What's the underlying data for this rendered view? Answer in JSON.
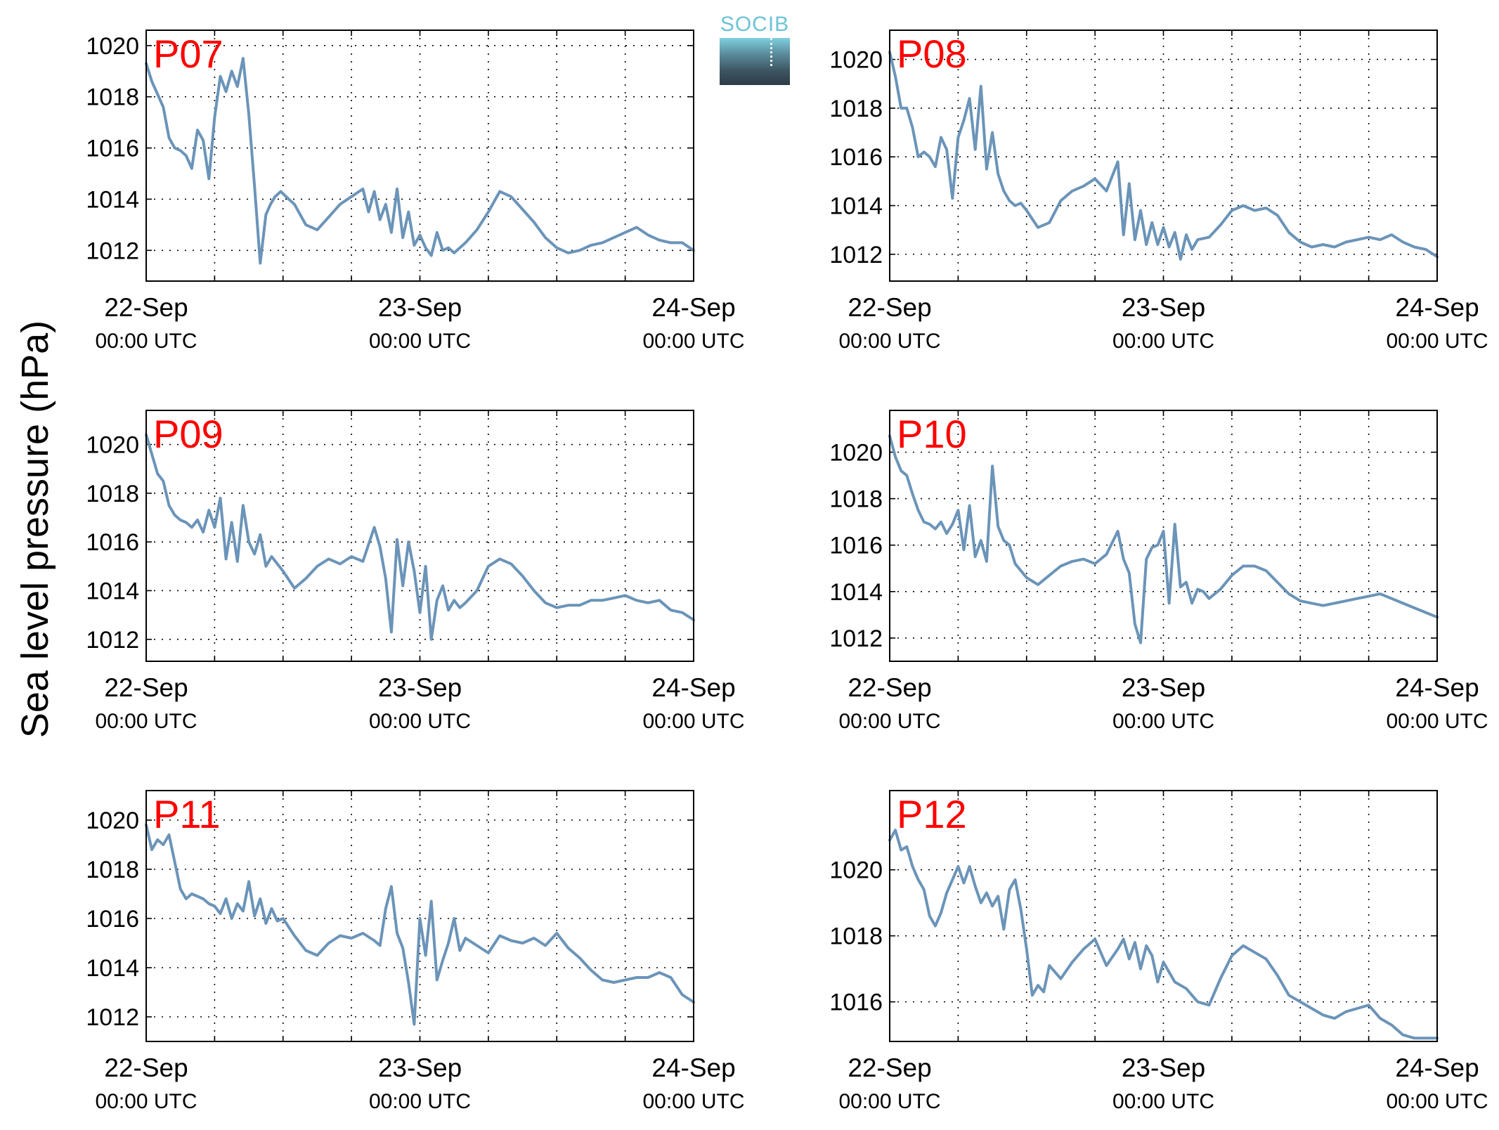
{
  "figure": {
    "ylabel": "Sea level pressure (hPa)",
    "logo_text": "SOCIB"
  },
  "colors": {
    "line": "#6b94b8",
    "panel_title": "#ff0000",
    "grid": "#000000"
  },
  "chart_data": [
    {
      "type": "line",
      "title": "P07",
      "x_ticks": [
        {
          "label": "22-Sep",
          "sublabel": "00:00 UTC",
          "hour": 0
        },
        {
          "label": "23-Sep",
          "sublabel": "00:00 UTC",
          "hour": 24
        },
        {
          "label": "24-Sep",
          "sublabel": "00:00 UTC",
          "hour": 48
        }
      ],
      "x_gridlines_every_hours": 6,
      "xlim": [
        0,
        48
      ],
      "ylim": [
        1010.8,
        1020.6
      ],
      "y_ticks": [
        1012,
        1014,
        1016,
        1018,
        1020
      ],
      "grid": true,
      "series": [
        {
          "hours": [
            0,
            0.5,
            1,
            1.5,
            2,
            2.5,
            3,
            3.5,
            4,
            4.5,
            5,
            5.5,
            6,
            6.5,
            7,
            7.5,
            8,
            8.5,
            9,
            9.5,
            10,
            10.5,
            10.9,
            11.3,
            11.8,
            12.5,
            13,
            14,
            15,
            16,
            17,
            18,
            19,
            19.5,
            20,
            20.5,
            21,
            21.5,
            22,
            22.5,
            23,
            23.5,
            24,
            24.5,
            25,
            25.5,
            26,
            26.5,
            27,
            28,
            29,
            30,
            31,
            32,
            33,
            34,
            35,
            36,
            37,
            38,
            39,
            40,
            41,
            42,
            43,
            44,
            45,
            46,
            47,
            48
          ],
          "values": [
            1019.3,
            1018.6,
            1018.1,
            1017.6,
            1016.4,
            1016.0,
            1015.9,
            1015.7,
            1015.2,
            1016.7,
            1016.3,
            1014.8,
            1017.2,
            1018.8,
            1018.2,
            1019.0,
            1018.4,
            1019.5,
            1017.3,
            1014.5,
            1011.5,
            1013.4,
            1013.8,
            1014.1,
            1014.3,
            1014.0,
            1013.8,
            1013.0,
            1012.8,
            1013.3,
            1013.8,
            1014.1,
            1014.4,
            1013.5,
            1014.3,
            1013.2,
            1013.8,
            1012.7,
            1014.4,
            1012.5,
            1013.5,
            1012.2,
            1012.6,
            1012.1,
            1011.8,
            1012.7,
            1012.0,
            1012.1,
            1011.9,
            1012.3,
            1012.8,
            1013.5,
            1014.3,
            1014.1,
            1013.6,
            1013.1,
            1012.5,
            1012.1,
            1011.9,
            1012.0,
            1012.2,
            1012.3,
            1012.5,
            1012.7,
            1012.9,
            1012.6,
            1012.4,
            1012.3,
            1012.3,
            1012.0
          ]
        }
      ]
    },
    {
      "type": "line",
      "title": "P08",
      "x_ticks": [
        {
          "label": "22-Sep",
          "sublabel": "00:00 UTC",
          "hour": 0
        },
        {
          "label": "23-Sep",
          "sublabel": "00:00 UTC",
          "hour": 24
        },
        {
          "label": "24-Sep",
          "sublabel": "00:00 UTC",
          "hour": 48
        }
      ],
      "x_gridlines_every_hours": 6,
      "xlim": [
        0,
        48
      ],
      "ylim": [
        1010.9,
        1021.2
      ],
      "y_ticks": [
        1012,
        1014,
        1016,
        1018,
        1020
      ],
      "grid": true,
      "series": [
        {
          "hours": [
            0,
            0.5,
            1,
            1.5,
            2,
            2.5,
            3,
            3.5,
            4,
            4.5,
            5,
            5.5,
            6,
            6.5,
            7,
            7.5,
            8,
            8.5,
            9,
            9.5,
            10,
            10.5,
            11,
            11.5,
            12,
            13,
            14,
            15,
            16,
            17,
            18,
            19,
            20,
            20.5,
            21,
            21.5,
            22,
            22.5,
            23,
            23.5,
            24,
            24.5,
            25,
            25.5,
            26,
            26.5,
            27,
            28,
            29,
            30,
            31,
            32,
            33,
            34,
            35,
            36,
            37,
            38,
            39,
            40,
            41,
            42,
            43,
            44,
            45,
            46,
            47,
            48
          ],
          "values": [
            1020.3,
            1019.3,
            1018.0,
            1018.0,
            1017.2,
            1016.0,
            1016.2,
            1016.0,
            1015.6,
            1016.8,
            1016.3,
            1014.3,
            1016.8,
            1017.5,
            1018.4,
            1016.3,
            1018.9,
            1015.5,
            1017.0,
            1015.3,
            1014.6,
            1014.2,
            1014.0,
            1014.1,
            1013.8,
            1013.1,
            1013.3,
            1014.2,
            1014.6,
            1014.8,
            1015.1,
            1014.6,
            1015.8,
            1012.8,
            1014.9,
            1012.6,
            1013.8,
            1012.4,
            1013.3,
            1012.4,
            1013.1,
            1012.3,
            1012.9,
            1011.8,
            1012.8,
            1012.2,
            1012.6,
            1012.7,
            1013.2,
            1013.8,
            1014.0,
            1013.8,
            1013.9,
            1013.6,
            1012.9,
            1012.5,
            1012.3,
            1012.4,
            1012.3,
            1012.5,
            1012.6,
            1012.7,
            1012.6,
            1012.8,
            1012.5,
            1012.3,
            1012.2,
            1011.9
          ]
        }
      ]
    },
    {
      "type": "line",
      "title": "P09",
      "x_ticks": [
        {
          "label": "22-Sep",
          "sublabel": "00:00 UTC",
          "hour": 0
        },
        {
          "label": "23-Sep",
          "sublabel": "00:00 UTC",
          "hour": 24
        },
        {
          "label": "24-Sep",
          "sublabel": "00:00 UTC",
          "hour": 48
        }
      ],
      "x_gridlines_every_hours": 6,
      "xlim": [
        0,
        48
      ],
      "ylim": [
        1011.1,
        1021.4
      ],
      "y_ticks": [
        1012,
        1014,
        1016,
        1018,
        1020
      ],
      "grid": true,
      "series": [
        {
          "hours": [
            0,
            0.5,
            1,
            1.5,
            2,
            2.5,
            3,
            3.5,
            4,
            4.5,
            5,
            5.5,
            6,
            6.5,
            7,
            7.5,
            8,
            8.5,
            9,
            9.5,
            10,
            10.5,
            11,
            12,
            13,
            14,
            15,
            16,
            17,
            18,
            19,
            20,
            20.5,
            21,
            21.5,
            22,
            22.5,
            23,
            23.5,
            24,
            24.5,
            25,
            25.5,
            26,
            26.5,
            27,
            27.5,
            28,
            29,
            30,
            31,
            32,
            33,
            34,
            35,
            36,
            37,
            38,
            39,
            40,
            41,
            42,
            43,
            44,
            45,
            46,
            47,
            48
          ],
          "values": [
            1020.4,
            1019.6,
            1018.8,
            1018.5,
            1017.5,
            1017.1,
            1016.9,
            1016.8,
            1016.6,
            1016.9,
            1016.4,
            1017.3,
            1016.6,
            1017.8,
            1015.3,
            1016.8,
            1015.2,
            1017.5,
            1016.0,
            1015.5,
            1016.3,
            1015.0,
            1015.4,
            1014.8,
            1014.1,
            1014.5,
            1015.0,
            1015.3,
            1015.1,
            1015.4,
            1015.2,
            1016.6,
            1015.8,
            1014.5,
            1012.3,
            1016.1,
            1014.2,
            1016.0,
            1014.8,
            1013.1,
            1015.0,
            1012.0,
            1013.6,
            1014.2,
            1013.2,
            1013.6,
            1013.3,
            1013.5,
            1014.0,
            1015.0,
            1015.3,
            1015.1,
            1014.6,
            1014.0,
            1013.5,
            1013.3,
            1013.4,
            1013.4,
            1013.6,
            1013.6,
            1013.7,
            1013.8,
            1013.6,
            1013.5,
            1013.6,
            1013.2,
            1013.1,
            1012.8
          ]
        }
      ]
    },
    {
      "type": "line",
      "title": "P10",
      "x_ticks": [
        {
          "label": "22-Sep",
          "sublabel": "00:00 UTC",
          "hour": 0
        },
        {
          "label": "23-Sep",
          "sublabel": "00:00 UTC",
          "hour": 24
        },
        {
          "label": "24-Sep",
          "sublabel": "00:00 UTC",
          "hour": 48
        }
      ],
      "x_gridlines_every_hours": 6,
      "xlim": [
        0,
        48
      ],
      "ylim": [
        1011.0,
        1021.8
      ],
      "y_ticks": [
        1012,
        1014,
        1016,
        1018,
        1020
      ],
      "grid": true,
      "series": [
        {
          "hours": [
            0,
            0.5,
            1,
            1.5,
            2,
            2.5,
            3,
            3.5,
            4,
            4.5,
            5,
            5.5,
            6,
            6.5,
            7,
            7.5,
            8,
            8.5,
            9,
            9.5,
            10,
            10.5,
            11,
            12,
            13,
            14,
            15,
            16,
            17,
            18,
            19,
            20,
            20.5,
            21,
            21.5,
            22,
            22.5,
            23,
            23.5,
            24,
            24.5,
            25,
            25.5,
            26,
            26.5,
            27,
            27.5,
            28,
            29,
            30,
            31,
            32,
            33,
            34,
            35,
            36,
            37,
            38,
            39,
            40,
            41,
            42,
            43,
            44,
            45,
            46,
            47,
            48
          ],
          "values": [
            1020.7,
            1019.8,
            1019.2,
            1019.0,
            1018.2,
            1017.5,
            1017.0,
            1016.9,
            1016.7,
            1017.0,
            1016.5,
            1016.9,
            1017.5,
            1015.8,
            1017.7,
            1015.5,
            1016.2,
            1015.3,
            1019.4,
            1016.8,
            1016.2,
            1016.0,
            1015.2,
            1014.6,
            1014.3,
            1014.7,
            1015.1,
            1015.3,
            1015.4,
            1015.2,
            1015.6,
            1016.6,
            1015.4,
            1014.8,
            1012.6,
            1011.8,
            1015.4,
            1015.9,
            1016.0,
            1016.6,
            1013.5,
            1016.9,
            1014.2,
            1014.4,
            1013.5,
            1014.1,
            1014.0,
            1013.7,
            1014.1,
            1014.7,
            1015.1,
            1015.1,
            1014.9,
            1014.4,
            1013.9,
            1013.6,
            1013.5,
            1013.4,
            1013.5,
            1013.6,
            1013.7,
            1013.8,
            1013.9,
            1013.7,
            1013.5,
            1013.3,
            1013.1,
            1012.9
          ]
        }
      ]
    },
    {
      "type": "line",
      "title": "P11",
      "x_ticks": [
        {
          "label": "22-Sep",
          "sublabel": "00:00 UTC",
          "hour": 0
        },
        {
          "label": "23-Sep",
          "sublabel": "00:00 UTC",
          "hour": 24
        },
        {
          "label": "24-Sep",
          "sublabel": "00:00 UTC",
          "hour": 48
        }
      ],
      "x_gridlines_every_hours": 6,
      "xlim": [
        0,
        48
      ],
      "ylim": [
        1011.0,
        1021.2
      ],
      "y_ticks": [
        1012,
        1014,
        1016,
        1018,
        1020
      ],
      "grid": true,
      "series": [
        {
          "hours": [
            0,
            0.5,
            1,
            1.5,
            2,
            2.5,
            3,
            3.5,
            4,
            4.5,
            5,
            5.5,
            6,
            6.5,
            7,
            7.5,
            8,
            8.5,
            9,
            9.5,
            10,
            10.5,
            11,
            11.5,
            12,
            13,
            14,
            15,
            16,
            17,
            18,
            19,
            20,
            20.5,
            21,
            21.5,
            22,
            22.5,
            23,
            23.5,
            24,
            24.5,
            25,
            25.5,
            26,
            26.5,
            27,
            27.5,
            28,
            29,
            30,
            31,
            32,
            33,
            34,
            35,
            36,
            37,
            38,
            39,
            40,
            41,
            42,
            43,
            44,
            45,
            46,
            47,
            48
          ],
          "values": [
            1019.8,
            1018.8,
            1019.2,
            1019.0,
            1019.4,
            1018.3,
            1017.2,
            1016.8,
            1017.0,
            1016.9,
            1016.8,
            1016.6,
            1016.5,
            1016.2,
            1016.8,
            1016.0,
            1016.6,
            1016.3,
            1017.5,
            1016.1,
            1016.8,
            1015.8,
            1016.4,
            1015.9,
            1016.0,
            1015.3,
            1014.7,
            1014.5,
            1015.0,
            1015.3,
            1015.2,
            1015.4,
            1015.1,
            1014.9,
            1016.4,
            1017.3,
            1015.4,
            1014.8,
            1013.4,
            1011.7,
            1016.0,
            1014.5,
            1016.7,
            1013.5,
            1014.3,
            1015.0,
            1016.0,
            1014.7,
            1015.2,
            1014.9,
            1014.6,
            1015.3,
            1015.1,
            1015.0,
            1015.2,
            1014.9,
            1015.4,
            1014.8,
            1014.4,
            1013.9,
            1013.5,
            1013.4,
            1013.5,
            1013.6,
            1013.6,
            1013.8,
            1013.6,
            1012.9,
            1012.6
          ]
        }
      ]
    },
    {
      "type": "line",
      "title": "P12",
      "x_ticks": [
        {
          "label": "22-Sep",
          "sublabel": "00:00 UTC",
          "hour": 0
        },
        {
          "label": "23-Sep",
          "sublabel": "00:00 UTC",
          "hour": 24
        },
        {
          "label": "24-Sep",
          "sublabel": "00:00 UTC",
          "hour": 48
        }
      ],
      "x_gridlines_every_hours": 6,
      "xlim": [
        0,
        48
      ],
      "ylim": [
        1014.8,
        1022.4
      ],
      "y_ticks": [
        1016,
        1018,
        1020
      ],
      "grid": true,
      "series": [
        {
          "hours": [
            0,
            0.5,
            1,
            1.5,
            2,
            2.5,
            3,
            3.5,
            4,
            4.5,
            5,
            5.5,
            6,
            6.5,
            7,
            7.5,
            8,
            8.5,
            9,
            9.5,
            10,
            10.5,
            11,
            11.5,
            12,
            12.5,
            13,
            13.5,
            14,
            15,
            16,
            17,
            18,
            19,
            20,
            20.5,
            21,
            21.5,
            22,
            22.5,
            23,
            23.5,
            24,
            25,
            26,
            27,
            28,
            29,
            30,
            31,
            32,
            33,
            34,
            35,
            36,
            37,
            38,
            39,
            40,
            41,
            42,
            43,
            44,
            45,
            46,
            47,
            48
          ],
          "values": [
            1020.9,
            1021.2,
            1020.6,
            1020.7,
            1020.1,
            1019.7,
            1019.4,
            1018.6,
            1018.3,
            1018.7,
            1019.3,
            1019.7,
            1020.1,
            1019.6,
            1020.1,
            1019.5,
            1019.0,
            1019.3,
            1018.9,
            1019.2,
            1018.2,
            1019.4,
            1019.7,
            1018.8,
            1017.6,
            1016.2,
            1016.5,
            1016.3,
            1017.1,
            1016.7,
            1017.2,
            1017.6,
            1017.9,
            1017.1,
            1017.6,
            1017.9,
            1017.3,
            1017.8,
            1017.0,
            1017.7,
            1017.4,
            1016.6,
            1017.2,
            1016.6,
            1016.4,
            1016.0,
            1015.9,
            1016.7,
            1017.4,
            1017.7,
            1017.5,
            1017.3,
            1016.8,
            1016.2,
            1016.0,
            1015.8,
            1015.6,
            1015.5,
            1015.7,
            1015.8,
            1015.9,
            1015.5,
            1015.3,
            1015.0,
            1014.9,
            1014.9,
            1014.9
          ]
        }
      ]
    }
  ]
}
